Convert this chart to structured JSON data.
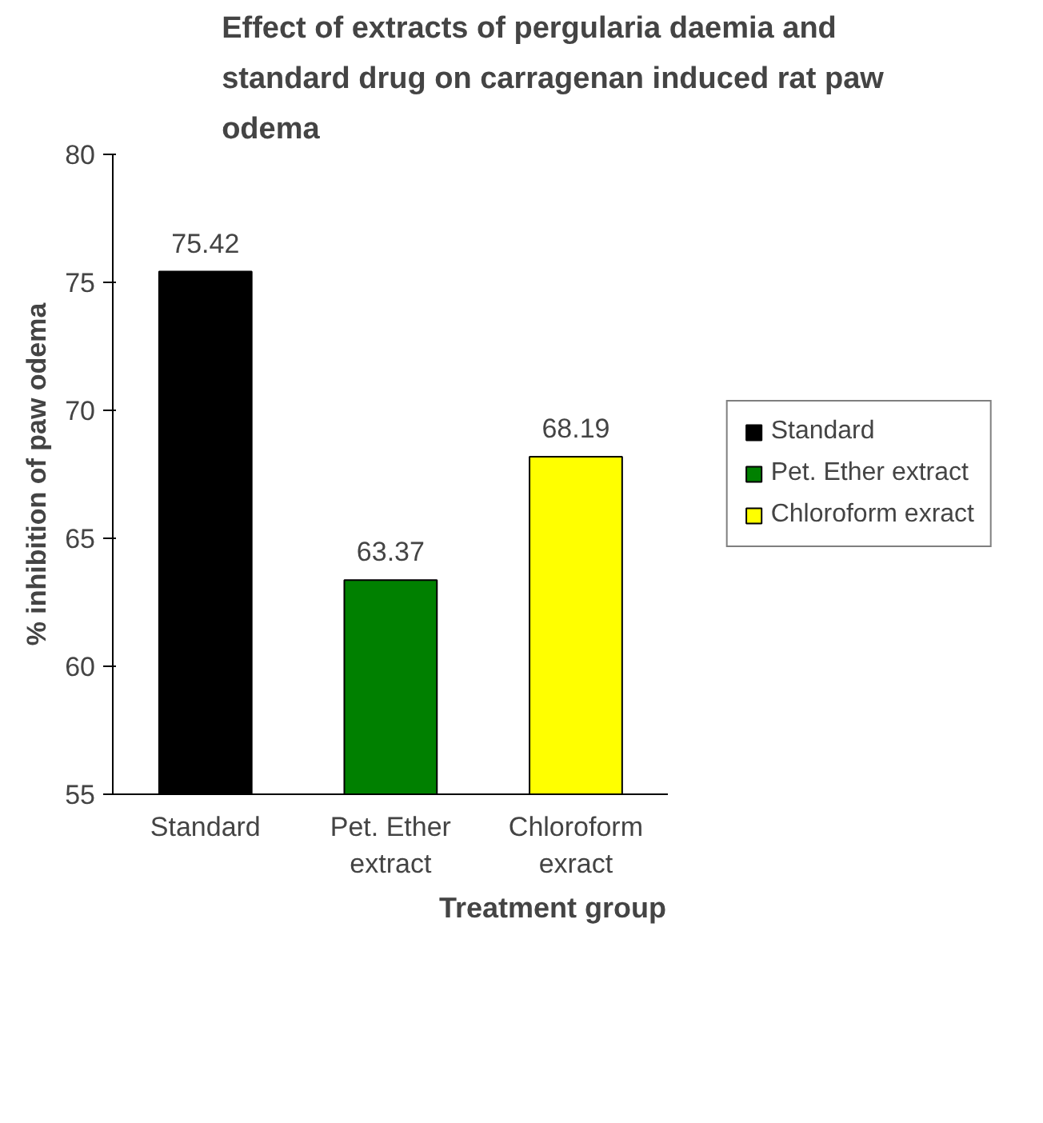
{
  "chart_data": {
    "type": "bar",
    "title": "Effect of extracts of pergularia daemia and standard drug on carragenan induced rat paw odema",
    "xlabel": "Treatment group",
    "ylabel": "% inhibition of paw odema",
    "categories": [
      "Standard",
      "Pet. Ether extract",
      "Chloroform exract"
    ],
    "series": [
      {
        "name": "Standard",
        "color": "#000000",
        "values": [
          75.42,
          null,
          null
        ]
      },
      {
        "name": "Pet. Ether extract",
        "color": "#008000",
        "values": [
          null,
          63.37,
          null
        ]
      },
      {
        "name": "Chloroform exract",
        "color": "#ffff00",
        "values": [
          null,
          null,
          68.19
        ]
      }
    ],
    "ylim": [
      55,
      80
    ],
    "yticks": [
      55,
      60,
      65,
      70,
      75,
      80
    ],
    "data_labels": true,
    "legend": "right",
    "grid": false
  }
}
